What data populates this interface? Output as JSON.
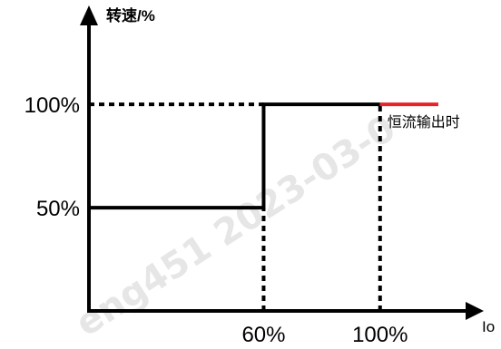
{
  "watermark": "eng451  2023-03-0",
  "chart_data": {
    "type": "line",
    "ylabel": "转速/%",
    "xlabel": "Io",
    "x_ticks": [
      {
        "value": 60,
        "label": "60%"
      },
      {
        "value": 100,
        "label": "100%"
      }
    ],
    "y_ticks": [
      {
        "value": 50,
        "label": "50%"
      },
      {
        "value": 100,
        "label": "100%"
      }
    ],
    "xlim": [
      0,
      130
    ],
    "ylim": [
      0,
      140
    ],
    "series": [
      {
        "color": "#000000",
        "points": [
          [
            0,
            50
          ],
          [
            60,
            50
          ],
          [
            60,
            100
          ],
          [
            100,
            100
          ]
        ]
      },
      {
        "color": "#e8222a",
        "points": [
          [
            100,
            100
          ],
          [
            120,
            100
          ]
        ]
      }
    ],
    "annotation": {
      "text": "恒流输出时",
      "color": "#e8222a",
      "x": 100,
      "y": 100
    },
    "guides": [
      {
        "type": "h",
        "y": 100,
        "x_from": 0,
        "x_to": 60
      },
      {
        "type": "v",
        "x": 60,
        "y_from": 0,
        "y_to": 50
      },
      {
        "type": "v",
        "x": 100,
        "y_from": 0,
        "y_to": 100
      }
    ]
  }
}
